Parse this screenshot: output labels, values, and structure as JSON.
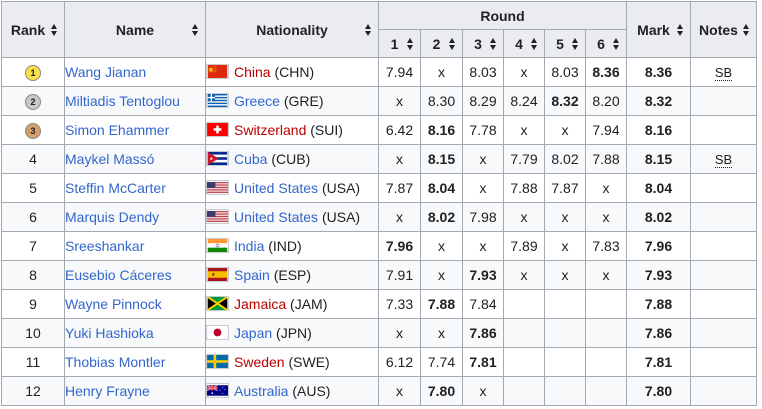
{
  "headers": {
    "rank": "Rank",
    "name": "Name",
    "nationality": "Nationality",
    "round": "Round",
    "mark": "Mark",
    "notes": "Notes",
    "rounds": [
      "1",
      "2",
      "3",
      "4",
      "5",
      "6"
    ]
  },
  "medal_colors": {
    "gold": "#f9e04b",
    "silver": "#c8c8c8",
    "bronze": "#d4a06a"
  },
  "rows": [
    {
      "rank": "1",
      "medal": "gold",
      "name": "Wang Jianan",
      "country": "China",
      "code": "(CHN)",
      "flag": "chn",
      "country_red": true,
      "rounds": [
        "7.94",
        "x",
        "8.03",
        "x",
        "8.03",
        "8.36"
      ],
      "bold": [
        false,
        false,
        false,
        false,
        false,
        true
      ],
      "mark": "8.36",
      "notes": "SB"
    },
    {
      "rank": "2",
      "medal": "silver",
      "name": "Miltiadis Tentoglou",
      "country": "Greece",
      "code": "(GRE)",
      "flag": "gre",
      "country_red": false,
      "rounds": [
        "x",
        "8.30",
        "8.29",
        "8.24",
        "8.32",
        "8.20"
      ],
      "bold": [
        false,
        false,
        false,
        false,
        true,
        false
      ],
      "mark": "8.32",
      "notes": ""
    },
    {
      "rank": "3",
      "medal": "bronze",
      "name": "Simon Ehammer",
      "country": "Switzerland",
      "code": "(SUI)",
      "flag": "sui",
      "country_red": true,
      "rounds": [
        "6.42",
        "8.16",
        "7.78",
        "x",
        "x",
        "7.94"
      ],
      "bold": [
        false,
        true,
        false,
        false,
        false,
        false
      ],
      "mark": "8.16",
      "notes": ""
    },
    {
      "rank": "4",
      "medal": "",
      "name": "Maykel Massó",
      "country": "Cuba",
      "code": "(CUB)",
      "flag": "cub",
      "country_red": false,
      "rounds": [
        "x",
        "8.15",
        "x",
        "7.79",
        "8.02",
        "7.88"
      ],
      "bold": [
        false,
        true,
        false,
        false,
        false,
        false
      ],
      "mark": "8.15",
      "notes": "SB"
    },
    {
      "rank": "5",
      "medal": "",
      "name": "Steffin McCarter",
      "country": "United States",
      "code": "(USA)",
      "flag": "usa",
      "country_red": false,
      "rounds": [
        "7.87",
        "8.04",
        "x",
        "7.88",
        "7.87",
        "x"
      ],
      "bold": [
        false,
        true,
        false,
        false,
        false,
        false
      ],
      "mark": "8.04",
      "notes": ""
    },
    {
      "rank": "6",
      "medal": "",
      "name": "Marquis Dendy",
      "country": "United States",
      "code": "(USA)",
      "flag": "usa",
      "country_red": false,
      "rounds": [
        "x",
        "8.02",
        "7.98",
        "x",
        "x",
        "x"
      ],
      "bold": [
        false,
        true,
        false,
        false,
        false,
        false
      ],
      "mark": "8.02",
      "notes": ""
    },
    {
      "rank": "7",
      "medal": "",
      "name": "Sreeshankar",
      "country": "India",
      "code": "(IND)",
      "flag": "ind",
      "country_red": false,
      "rounds": [
        "7.96",
        "x",
        "x",
        "7.89",
        "x",
        "7.83"
      ],
      "bold": [
        true,
        false,
        false,
        false,
        false,
        false
      ],
      "mark": "7.96",
      "notes": ""
    },
    {
      "rank": "8",
      "medal": "",
      "name": "Eusebio Cáceres",
      "country": "Spain",
      "code": "(ESP)",
      "flag": "esp",
      "country_red": false,
      "rounds": [
        "7.91",
        "x",
        "7.93",
        "x",
        "x",
        "x"
      ],
      "bold": [
        false,
        false,
        true,
        false,
        false,
        false
      ],
      "mark": "7.93",
      "notes": ""
    },
    {
      "rank": "9",
      "medal": "",
      "name": "Wayne Pinnock",
      "country": "Jamaica",
      "code": "(JAM)",
      "flag": "jam",
      "country_red": true,
      "rounds": [
        "7.33",
        "7.88",
        "7.84",
        "",
        "",
        ""
      ],
      "bold": [
        false,
        true,
        false,
        false,
        false,
        false
      ],
      "mark": "7.88",
      "notes": ""
    },
    {
      "rank": "10",
      "medal": "",
      "name": "Yuki Hashioka",
      "country": "Japan",
      "code": "(JPN)",
      "flag": "jpn",
      "country_red": false,
      "rounds": [
        "x",
        "x",
        "7.86",
        "",
        "",
        ""
      ],
      "bold": [
        false,
        false,
        true,
        false,
        false,
        false
      ],
      "mark": "7.86",
      "notes": ""
    },
    {
      "rank": "11",
      "medal": "",
      "name": "Thobias Montler",
      "country": "Sweden",
      "code": "(SWE)",
      "flag": "swe",
      "country_red": true,
      "rounds": [
        "6.12",
        "7.74",
        "7.81",
        "",
        "",
        ""
      ],
      "bold": [
        false,
        false,
        true,
        false,
        false,
        false
      ],
      "mark": "7.81",
      "notes": ""
    },
    {
      "rank": "12",
      "medal": "",
      "name": "Henry Frayne",
      "country": "Australia",
      "code": "(AUS)",
      "flag": "aus",
      "country_red": false,
      "rounds": [
        "x",
        "7.80",
        "x",
        "",
        "",
        ""
      ],
      "bold": [
        false,
        true,
        false,
        false,
        false,
        false
      ],
      "mark": "7.80",
      "notes": ""
    }
  ]
}
